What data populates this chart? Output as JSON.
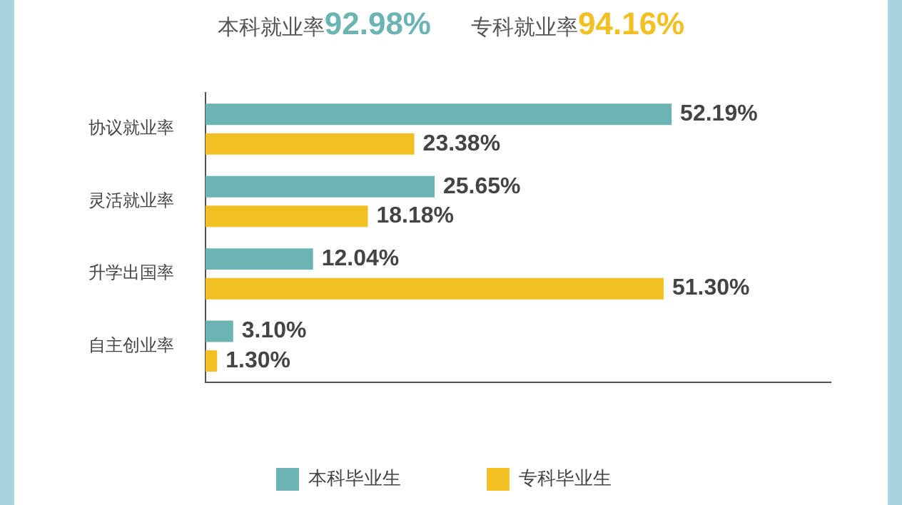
{
  "chart_data": {
    "type": "bar",
    "orientation": "horizontal",
    "annotations": [
      "本科就业率92.98%",
      "专科就业率94.16%"
    ],
    "categories": [
      "协议就业率",
      "灵活就业率",
      "升学出国率",
      "自主创业率"
    ],
    "series": [
      {
        "name": "本科毕业生",
        "color": "#6cb4b3",
        "values": [
          52.19,
          25.65,
          12.04,
          3.1
        ],
        "value_labels": [
          "52.19%",
          "25.65%",
          "12.04%",
          "3.10%"
        ]
      },
      {
        "name": "专科毕业生",
        "color": "#f2c023",
        "values": [
          23.38,
          18.18,
          51.3,
          1.3
        ],
        "value_labels": [
          "23.38%",
          "18.18%",
          "51.30%",
          "1.30%"
        ]
      }
    ],
    "xlim": [
      0,
      70
    ],
    "tick_labels": "y",
    "grid": false,
    "legend": "bottom"
  }
}
